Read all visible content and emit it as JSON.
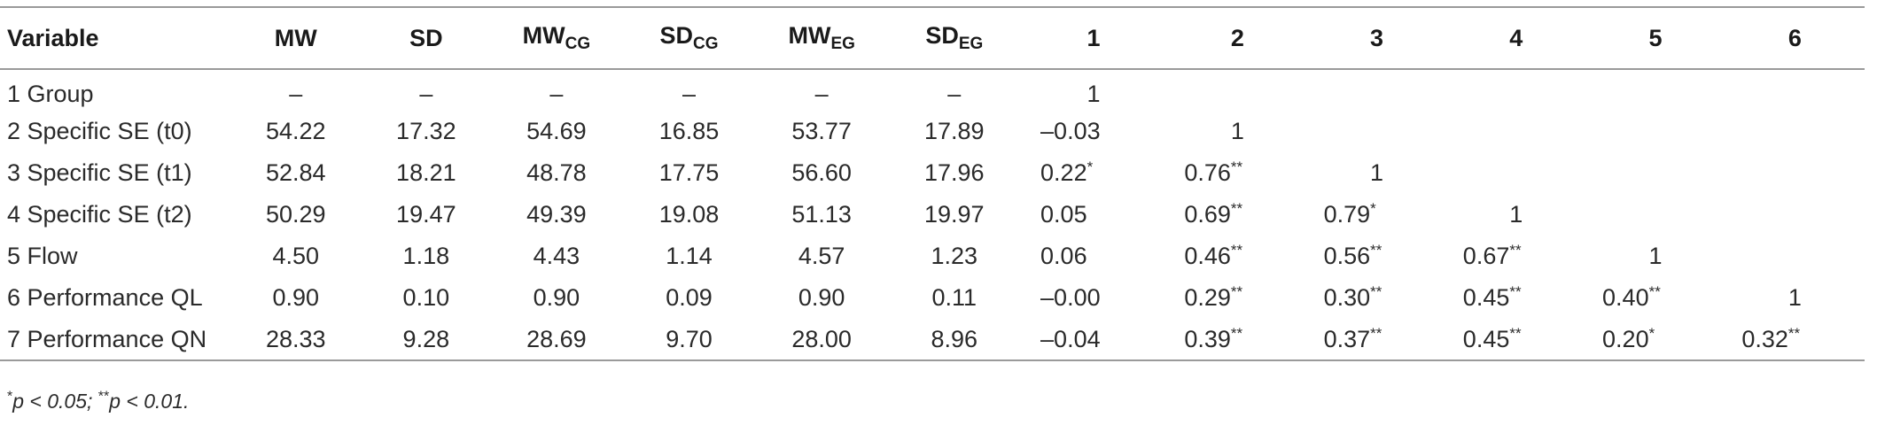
{
  "table": {
    "headers": [
      {
        "main": "Variable",
        "sub": ""
      },
      {
        "main": "MW",
        "sub": ""
      },
      {
        "main": "SD",
        "sub": ""
      },
      {
        "main": "MW",
        "sub": "CG"
      },
      {
        "main": "SD",
        "sub": "CG"
      },
      {
        "main": "MW",
        "sub": "EG"
      },
      {
        "main": "SD",
        "sub": "EG"
      },
      {
        "main": "1",
        "sub": ""
      },
      {
        "main": "2",
        "sub": ""
      },
      {
        "main": "3",
        "sub": ""
      },
      {
        "main": "4",
        "sub": ""
      },
      {
        "main": "5",
        "sub": ""
      },
      {
        "main": "6",
        "sub": ""
      }
    ],
    "rows": [
      {
        "variable": "1 Group",
        "stats": [
          "–",
          "–",
          "–",
          "–",
          "–",
          "–"
        ],
        "corr": [
          {
            "v": "1",
            "s": ""
          },
          {
            "v": "",
            "s": ""
          },
          {
            "v": "",
            "s": ""
          },
          {
            "v": "",
            "s": ""
          },
          {
            "v": "",
            "s": ""
          },
          {
            "v": "",
            "s": ""
          }
        ]
      },
      {
        "variable": "2 Specific SE (t0)",
        "stats": [
          "54.22",
          "17.32",
          "54.69",
          "16.85",
          "53.77",
          "17.89"
        ],
        "corr": [
          {
            "v": "–0.03",
            "s": ""
          },
          {
            "v": "1",
            "s": ""
          },
          {
            "v": "",
            "s": ""
          },
          {
            "v": "",
            "s": ""
          },
          {
            "v": "",
            "s": ""
          },
          {
            "v": "",
            "s": ""
          }
        ]
      },
      {
        "variable": "3 Specific SE (t1)",
        "stats": [
          "52.84",
          "18.21",
          "48.78",
          "17.75",
          "56.60",
          "17.96"
        ],
        "corr": [
          {
            "v": "0.22",
            "s": "*"
          },
          {
            "v": "0.76",
            "s": "**"
          },
          {
            "v": "1",
            "s": ""
          },
          {
            "v": "",
            "s": ""
          },
          {
            "v": "",
            "s": ""
          },
          {
            "v": "",
            "s": ""
          }
        ]
      },
      {
        "variable": "4 Specific SE (t2)",
        "stats": [
          "50.29",
          "19.47",
          "49.39",
          "19.08",
          "51.13",
          "19.97"
        ],
        "corr": [
          {
            "v": "0.05",
            "s": ""
          },
          {
            "v": "0.69",
            "s": "**"
          },
          {
            "v": "0.79",
            "s": "*"
          },
          {
            "v": "1",
            "s": ""
          },
          {
            "v": "",
            "s": ""
          },
          {
            "v": "",
            "s": ""
          }
        ]
      },
      {
        "variable": "5 Flow",
        "stats": [
          "4.50",
          "1.18",
          "4.43",
          "1.14",
          "4.57",
          "1.23"
        ],
        "corr": [
          {
            "v": "0.06",
            "s": ""
          },
          {
            "v": "0.46",
            "s": "**"
          },
          {
            "v": "0.56",
            "s": "**"
          },
          {
            "v": "0.67",
            "s": "**"
          },
          {
            "v": "1",
            "s": ""
          },
          {
            "v": "",
            "s": ""
          }
        ]
      },
      {
        "variable": "6 Performance QL",
        "stats": [
          "0.90",
          "0.10",
          "0.90",
          "0.09",
          "0.90",
          "0.11"
        ],
        "corr": [
          {
            "v": "–0.00",
            "s": ""
          },
          {
            "v": "0.29",
            "s": "**"
          },
          {
            "v": "0.30",
            "s": "**"
          },
          {
            "v": "0.45",
            "s": "**"
          },
          {
            "v": "0.40",
            "s": "**"
          },
          {
            "v": "1",
            "s": ""
          }
        ]
      },
      {
        "variable": "7 Performance QN",
        "stats": [
          "28.33",
          "9.28",
          "28.69",
          "9.70",
          "28.00",
          "8.96"
        ],
        "corr": [
          {
            "v": "–0.04",
            "s": ""
          },
          {
            "v": "0.39",
            "s": "**"
          },
          {
            "v": "0.37",
            "s": "**"
          },
          {
            "v": "0.45",
            "s": "**"
          },
          {
            "v": "0.20",
            "s": "*"
          },
          {
            "v": "0.32",
            "s": "**"
          }
        ]
      }
    ]
  },
  "footnote": {
    "sig1_mark": "*",
    "sig1_text": "p < 0.05; ",
    "sig2_mark": "**",
    "sig2_text": "p < 0.01."
  }
}
